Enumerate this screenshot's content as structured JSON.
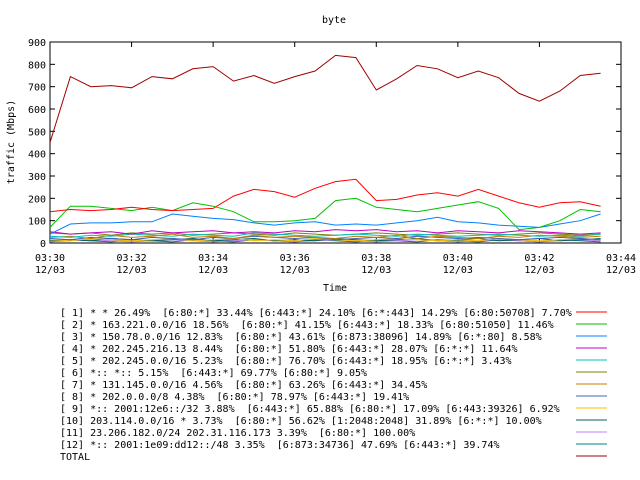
{
  "chart_data": {
    "type": "line",
    "title": "byte",
    "xlabel": "Time",
    "ylabel": "traffic (Mbps)",
    "ylim": [
      0,
      900
    ],
    "xlim": [
      0,
      14
    ],
    "grid": false,
    "legend_position": "bottom",
    "y_ticks": [
      "0",
      "100",
      "200",
      "300",
      "400",
      "500",
      "600",
      "700",
      "800",
      "900"
    ],
    "x_ticks": [
      {
        "x": 0,
        "time": "03:30",
        "date": "12/03"
      },
      {
        "x": 2,
        "time": "03:32",
        "date": "12/03"
      },
      {
        "x": 4,
        "time": "03:34",
        "date": "12/03"
      },
      {
        "x": 6,
        "time": "03:36",
        "date": "12/03"
      },
      {
        "x": 8,
        "time": "03:38",
        "date": "12/03"
      },
      {
        "x": 10,
        "time": "03:40",
        "date": "12/03"
      },
      {
        "x": 12,
        "time": "03:42",
        "date": "12/03"
      },
      {
        "x": 14,
        "time": "03:44",
        "date": "12/03"
      }
    ],
    "x": [
      0.0,
      0.5,
      1.0,
      1.5,
      2.0,
      2.5,
      3.0,
      3.5,
      4.0,
      4.5,
      5.0,
      5.5,
      6.0,
      6.5,
      7.0,
      7.5,
      8.0,
      8.5,
      9.0,
      9.5,
      10.0,
      10.5,
      11.0,
      11.5,
      12.0,
      12.5,
      13.0,
      13.5
    ],
    "series": [
      {
        "name": "[ 1] * * 26.49%  [6:80:*] 33.44% [6:443:*] 24.10% [6:*:443] 14.29% [6:80:50708] 7.70%",
        "color": "#ff0000",
        "values": [
          140,
          150,
          145,
          150,
          160,
          150,
          145,
          150,
          155,
          210,
          240,
          230,
          205,
          245,
          275,
          285,
          190,
          195,
          215,
          225,
          210,
          240,
          210,
          180,
          160,
          180,
          185,
          165
        ]
      },
      {
        "name": "[ 2] * 163.221.0.0/16 18.56%  [6:80:*] 41.15% [6:443:*] 18.33% [6:80:51050] 11.46%",
        "color": "#00c000",
        "values": [
          70,
          165,
          165,
          155,
          145,
          160,
          145,
          180,
          165,
          140,
          95,
          95,
          100,
          110,
          190,
          200,
          160,
          150,
          140,
          155,
          170,
          185,
          155,
          60,
          70,
          100,
          150,
          140
        ]
      },
      {
        "name": "[ 3] * 150.78.0.0/16 12.83%  [6:80:*] 43.61% [6:873:38096] 14.89% [6:*:80] 8.58%",
        "color": "#0080ff",
        "values": [
          40,
          85,
          90,
          90,
          95,
          95,
          130,
          120,
          110,
          105,
          90,
          80,
          90,
          95,
          80,
          85,
          80,
          90,
          100,
          115,
          95,
          90,
          80,
          75,
          70,
          85,
          100,
          130
        ]
      },
      {
        "name": "[ 4] * 202.245.216.13 8.44%  [6:80:*] 51.80% [6:443:*] 28.07% [6:*:*] 11.64%",
        "color": "#c000c0",
        "values": [
          50,
          40,
          45,
          50,
          40,
          55,
          45,
          50,
          55,
          45,
          50,
          45,
          55,
          50,
          60,
          55,
          60,
          50,
          55,
          45,
          55,
          50,
          45,
          55,
          50,
          45,
          40,
          45
        ]
      },
      {
        "name": "[ 5] * 202.245.0.0/16 5.23%  [6:80:*] 76.70% [6:443:*] 18.95% [6:*:*] 3.43%",
        "color": "#00c0c0",
        "values": [
          30,
          25,
          35,
          30,
          40,
          35,
          30,
          40,
          35,
          30,
          45,
          40,
          35,
          30,
          35,
          40,
          35,
          30,
          40,
          35,
          30,
          35,
          40,
          35,
          30,
          35,
          30,
          40
        ]
      },
      {
        "name": "[ 6] *:: *:: 5.15%  [6:443:*] 69.77% [6:80:*] 9.05%",
        "color": "#808000",
        "values": [
          45,
          40,
          45,
          35,
          45,
          40,
          45,
          35,
          40,
          45,
          40,
          35,
          45,
          40,
          35,
          40,
          45,
          40,
          35,
          40,
          45,
          40,
          35,
          40,
          45,
          40,
          35,
          40
        ]
      },
      {
        "name": "[ 7] * 131.145.0.0/16 4.56%  [6:80:*] 63.26% [6:443:*] 34.45%",
        "color": "#c08000",
        "values": [
          25,
          30,
          20,
          35,
          25,
          30,
          40,
          25,
          30,
          20,
          35,
          25,
          30,
          25,
          20,
          30,
          25,
          35,
          20,
          30,
          25,
          20,
          30,
          25,
          35,
          30,
          25,
          30
        ]
      },
      {
        "name": "[ 8] * 202.0.0.0/8 4.38%  [6:80:*] 78.97% [6:443:*] 19.41%",
        "color": "#4060c0",
        "values": [
          20,
          15,
          25,
          20,
          15,
          25,
          20,
          15,
          25,
          20,
          30,
          25,
          20,
          25,
          15,
          20,
          25,
          20,
          30,
          25,
          20,
          25,
          20,
          15,
          20,
          25,
          20,
          15
        ]
      },
      {
        "name": "[ 9] *:: 2001:12e6::/32 3.88%  [6:443:*] 65.88% [6:80:*] 17.09% [6:443:39326] 6.92%",
        "color": "#ffc000",
        "values": [
          15,
          10,
          20,
          15,
          10,
          15,
          20,
          10,
          15,
          20,
          10,
          15,
          10,
          20,
          15,
          10,
          15,
          20,
          15,
          10,
          15,
          10,
          20,
          15,
          10,
          15,
          20,
          15
        ]
      },
      {
        "name": "[10] 203.114.0.0/16 * 3.73%  [6:80:*] 56.62% [1:2048:2048] 31.89% [6:*:*] 10.00%",
        "color": "#006060",
        "values": [
          10,
          15,
          10,
          20,
          15,
          10,
          15,
          20,
          10,
          15,
          20,
          10,
          15,
          10,
          20,
          15,
          10,
          15,
          20,
          10,
          15,
          20,
          10,
          15,
          20,
          10,
          15,
          20
        ]
      },
      {
        "name": "[11] 23.206.182.0/24 202.31.116.173 3.39%  [6:80:*] 100.00%",
        "color": "#c080ff",
        "values": [
          5,
          10,
          15,
          10,
          5,
          10,
          15,
          10,
          5,
          10,
          15,
          10,
          5,
          10,
          15,
          10,
          5,
          10,
          15,
          10,
          5,
          10,
          15,
          10,
          5,
          10,
          15,
          10
        ]
      },
      {
        "name": "[12] *:: 2001:1e09:dd12::/48 3.35%  [6:873:34736] 47.69% [6:443:*] 39.74%",
        "color": "#008080",
        "values": [
          5,
          15,
          10,
          5,
          15,
          10,
          5,
          15,
          10,
          5,
          15,
          10,
          5,
          15,
          10,
          5,
          15,
          10,
          5,
          15,
          10,
          5,
          15,
          10,
          5,
          15,
          10,
          5
        ]
      },
      {
        "name": "TOTAL",
        "color": "#a00000",
        "values": [
          450,
          745,
          700,
          705,
          695,
          745,
          735,
          780,
          790,
          725,
          750,
          715,
          745,
          770,
          840,
          830,
          685,
          735,
          795,
          780,
          740,
          770,
          740,
          670,
          635,
          680,
          750,
          760
        ]
      }
    ]
  }
}
